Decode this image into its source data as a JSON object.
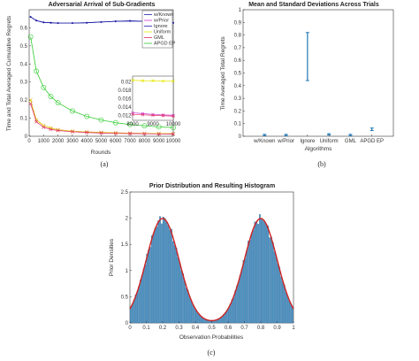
{
  "figure": {
    "captions": [
      "(a)",
      "(b)",
      "(c)"
    ]
  },
  "chart_data": [
    {
      "type": "line",
      "title": "Adversarial Arrival of Sub-Gradients",
      "xlabel": "Rounds",
      "ylabel": "Time and Total Averaged Cumulative Regrets",
      "xlim": [
        0,
        10000
      ],
      "ylim": [
        0,
        0.7
      ],
      "xticks": [
        "0",
        "1000",
        "2000",
        "3000",
        "4000",
        "5000",
        "6000",
        "7000",
        "8000",
        "9000",
        "10000"
      ],
      "yticks": [
        "0",
        "0.1",
        "0.2",
        "0.3",
        "0.4",
        "0.5",
        "0.6"
      ],
      "legend_position": "top-right",
      "x": [
        100,
        500,
        1000,
        1500,
        2000,
        3000,
        4000,
        5000,
        6000,
        7000,
        8000,
        9000,
        10000
      ],
      "series": [
        {
          "name": "w/Known",
          "color": "#1f1fa8",
          "marker": "dot",
          "values": [
            0.66,
            0.64,
            0.63,
            0.628,
            0.626,
            0.626,
            0.628,
            0.632,
            0.636,
            0.638,
            0.636,
            0.63,
            0.628
          ]
        },
        {
          "name": "w/Prior",
          "color": "#cc33cc",
          "marker": "star",
          "values": [
            0.2,
            0.09,
            0.06,
            0.045,
            0.036,
            0.028,
            0.024,
            0.021,
            0.019,
            0.017,
            0.016,
            0.015,
            0.014
          ]
        },
        {
          "name": "Ignore",
          "color": "#1f1fa8",
          "marker": "dot",
          "values": [
            0.66,
            0.64,
            0.63,
            0.628,
            0.626,
            0.626,
            0.628,
            0.632,
            0.636,
            0.638,
            0.636,
            0.63,
            0.628
          ]
        },
        {
          "name": "Uniform",
          "color": "#e6e600",
          "marker": "star",
          "values": [
            0.2,
            0.09,
            0.06,
            0.045,
            0.036,
            0.028,
            0.024,
            0.021,
            0.019,
            0.017,
            0.016,
            0.015,
            0.014
          ]
        },
        {
          "name": "GML",
          "color": "#e0306a",
          "marker": "x",
          "values": [
            0.18,
            0.08,
            0.05,
            0.038,
            0.032,
            0.025,
            0.021,
            0.018,
            0.016,
            0.015,
            0.014,
            0.013,
            0.012
          ]
        },
        {
          "name": "APGD EP",
          "color": "#33cc33",
          "marker": "circle",
          "values": [
            0.55,
            0.36,
            0.27,
            0.22,
            0.185,
            0.14,
            0.11,
            0.09,
            0.075,
            0.065,
            0.058,
            0.052,
            0.048
          ]
        }
      ],
      "inset": {
        "xlim": [
          8000,
          10000
        ],
        "ylim": [
          0.011,
          0.0215
        ],
        "xticks": [
          "8000",
          "9000",
          "10000"
        ],
        "yticks": [
          "0.012",
          "0.014",
          "0.016",
          "0.018",
          "0.02"
        ]
      }
    },
    {
      "type": "errorbar",
      "title": "Mean and Standard Deviations Across Trials",
      "xlabel": "Algorithms",
      "ylabel": "Time Averaged Total Regrets",
      "categories": [
        "w/Known",
        "w/Prior",
        "Ignore",
        "Uniform",
        "GML",
        "APGD EP"
      ],
      "mean": [
        0.01,
        0.01,
        0.63,
        0.015,
        0.01,
        0.055
      ],
      "lower": [
        0.005,
        0.005,
        0.44,
        0.01,
        0.005,
        0.045
      ],
      "upper": [
        0.015,
        0.015,
        0.82,
        0.02,
        0.015,
        0.065
      ],
      "ylim": [
        0,
        1
      ],
      "yticks": [
        "0",
        "0.1",
        "0.2",
        "0.3",
        "0.4",
        "0.5",
        "0.6",
        "0.7",
        "0.8",
        "0.9",
        "1"
      ],
      "color": "#1f77b4"
    },
    {
      "type": "histogram",
      "title": "Prior Distribution and Resulting Histogram",
      "xlabel": "Observation Probabilities",
      "ylabel": "Prior Densities",
      "xlim": [
        0,
        1
      ],
      "ylim": [
        0,
        2.5
      ],
      "xticks": [
        "0",
        "0.1",
        "0.2",
        "0.3",
        "0.4",
        "0.5",
        "0.6",
        "0.7",
        "0.8",
        "0.9",
        "1"
      ],
      "yticks": [
        "0",
        "0.5",
        "1",
        "1.5",
        "2",
        "2.5"
      ],
      "density_curve": "bimodal, peaks near 0.2 and 0.8 at about 2.0, minimum about 0.22 at 0.5",
      "bar_color": "#4a8fc0",
      "curve_color": "#cc2222"
    }
  ]
}
